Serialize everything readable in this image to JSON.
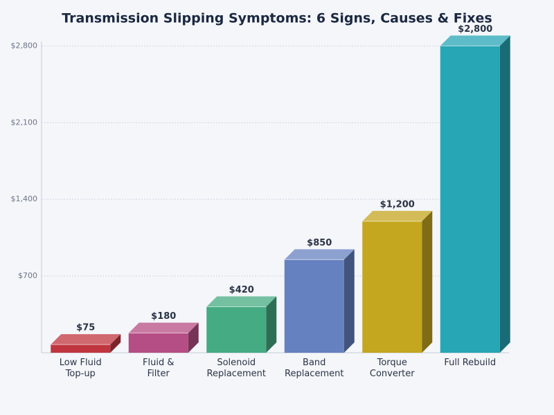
{
  "chart_data": {
    "type": "bar3d",
    "title": "Transmission Slipping Symptoms: 6 Signs, Causes & Fixes",
    "categories": [
      "Low Fluid\nTop-up",
      "Fluid &\nFilter",
      "Solenoid\nReplacement",
      "Band\nReplacement",
      "Torque\nConverter",
      "Full Rebuild"
    ],
    "values": [
      75,
      180,
      420,
      850,
      1200,
      2800
    ],
    "value_labels": [
      "$75",
      "$180",
      "$420",
      "$850",
      "$1,200",
      "$2,800"
    ],
    "colors": [
      "#c0363f",
      "#b54e84",
      "#45ab82",
      "#6681c0",
      "#c4a61f",
      "#27a6b5"
    ],
    "ylim": [
      0,
      2840
    ],
    "yticks": [
      {
        "value": 700,
        "label": "$700"
      },
      {
        "value": 1400,
        "label": "$1,400"
      },
      {
        "value": 2100,
        "label": "$2,100"
      },
      {
        "value": 2800,
        "label": "$2,800"
      }
    ],
    "grid": true
  }
}
